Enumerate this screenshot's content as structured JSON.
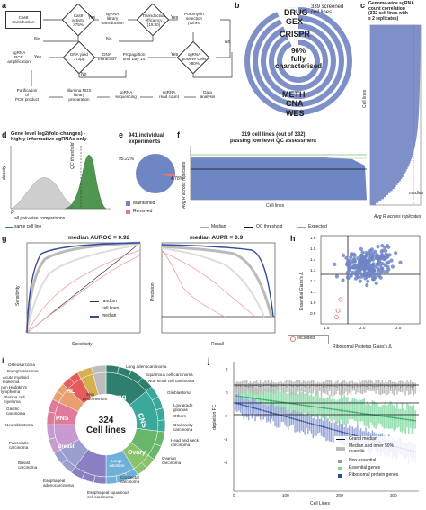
{
  "panels": {
    "a": "a",
    "b": "b",
    "c": "c",
    "d": "d",
    "e": "e",
    "f": "f",
    "g": "g",
    "h": "h",
    "i": "i",
    "j": "j"
  },
  "a": {
    "cas9": "Cas9\ntransduction",
    "cas9_activity": "Cas9\nactivity\n>75%",
    "sgrna_lib": "sgRNA\nlibrary\ntransduction",
    "transduction_eff": "Transduction\nefficiency\n[15:80]",
    "puromycin": "Puromycin\nselection\n(72hrs)",
    "yes": "Yes",
    "no": "No",
    "sgrna_pcr": "sgRNA\nPCR\namplification",
    "dna_yield": "DNA yield\n>72µg",
    "dna_extraction": "DNA\nextraction",
    "propagation": "Propagation\nuntil Day 14",
    "sgrna_positive": "sgRNA\npositive Cells\n>80%",
    "purification": "Purification\nof\nPCR product",
    "illumina": "Illumina NGS\nlibrary\npreparation",
    "sequencing": "sgRNA\nsequencing",
    "read_count": "sgRNA\nread count",
    "analysis": "Data\nanalysis"
  },
  "b": {
    "screened": "339 screened\ncell lines",
    "rings": [
      "DRUG",
      "GEX",
      "CRISPR",
      "METH",
      "CNA",
      "WES"
    ],
    "center": "96%\nfully\ncharacterised"
  },
  "c": {
    "title": "Genome-wide sgRNA\ncount correlation\n(332 cell lines with\n≥ 2 replicates)",
    "ylabel": "Cell lines",
    "xlabel": "Avg R across replicates",
    "median": "median"
  },
  "d": {
    "title": "Gene level log2(fold-changes) -\nhighly informative sgRNAs only",
    "ylabel": "density",
    "xlabel": "R",
    "qc": "QC threshold",
    "legend_all": "all pair-wise comparisons",
    "legend_same": "same cell line"
  },
  "e": {
    "title": "941 individual\nexperiments",
    "pct_main": "95.22%",
    "pct_small": "4.78%",
    "legend_maintained": "Maintained",
    "legend_removed": "Removed",
    "colors": {
      "maintained": "#6f86c5",
      "removed": "#e07a7a"
    }
  },
  "f": {
    "title": "319 cell lines (out of 332)\npassing low level QC assessment",
    "ylabel": "Avg R across replicates",
    "xlabel": "Cell lines",
    "legend": [
      "Median",
      "QC threshold",
      "Expected"
    ]
  },
  "g": {
    "left_title": "median AUROC = 0.92",
    "right_title": "median AUPR = 0.9",
    "left_y": "Sensitivity",
    "left_x": "Specificity",
    "right_y": "Precision",
    "right_x": "Recall",
    "legend": [
      "random",
      "cell lines",
      "median"
    ]
  },
  "h": {
    "ylabel": "Essential Glass's Δ",
    "xlabel": "Ribosomal Proteins Glass's Δ",
    "excluded": "excluded",
    "yticks": [
      "1.6",
      "1.5",
      "1.4",
      "1.3",
      "1.2",
      "1.1",
      "1.0",
      "0.9"
    ],
    "xticks": [
      "1.5",
      "2.0",
      "2.5"
    ],
    "excluded_points": [
      [
        1.6,
        1.04
      ],
      [
        1.56,
        0.94
      ],
      [
        1.54,
        0.88
      ]
    ]
  },
  "i": {
    "center": "324\nCell lines",
    "left_labels": [
      "Osteosarcoma",
      "Ewing's sarcoma",
      "Acute myeloid\nleukemia",
      "non Hodgkin's\nlymphoma",
      "Plasma cell\nmyeloma",
      "Gastric\ncarcinoma",
      "Neuroblastoma",
      "Pancreatic\ncarcinoma",
      "Breast\ncarcinoma",
      "Esophageal\nadenocarcinoma"
    ],
    "right_labels": [
      "Lung adenocarcinoma",
      "Squamous cell carcinoma",
      "Non small cell carcinoma",
      "Glioblastoma",
      "Low grade\ngliomas",
      "Others",
      "Oral cavity\ncarcinoma",
      "Head and neck\ncarcinoma",
      "Ovarian\ncarcinoma",
      "Colorectal\ncarcinoma",
      "Esophageal squamous\ncell carcinoma"
    ],
    "inner": [
      "Lung",
      "CNS",
      "Peripheral\nnervous\nsystem",
      "Head and neck",
      "Ovary",
      "Large\nintestine",
      "Esophagus",
      "Breast",
      "Pancreas",
      "Stomach",
      "HL",
      "Bone",
      "Skin",
      "Endometrium",
      "Other"
    ],
    "misc": [
      "Skin",
      "Endometrium",
      "Others",
      "Melanoma"
    ]
  },
  "j": {
    "ylabel": "depletion FC",
    "xlabel": "Cell Lines",
    "yticks": [
      "2",
      "0",
      "-2",
      "-4",
      "-6"
    ],
    "xticks": [
      "0",
      "100",
      "200",
      "300"
    ],
    "legend": [
      "Grand median",
      "Median and inner 50%\nquantile",
      "Non essential",
      "Essential genes",
      "Ribosomal protein genes"
    ]
  }
}
